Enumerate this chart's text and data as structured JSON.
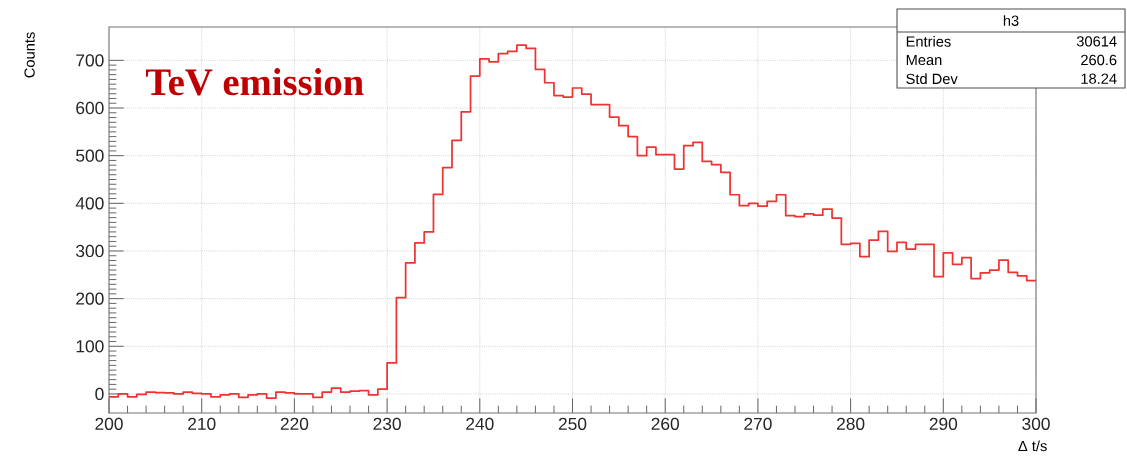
{
  "chart_data": {
    "type": "histogram",
    "xlabel": "Δ t/s",
    "ylabel": "Counts",
    "color": "#ee3333",
    "bins": [
      200,
      201,
      202,
      203,
      204,
      205,
      206,
      207,
      208,
      209,
      210,
      211,
      212,
      213,
      214,
      215,
      216,
      217,
      218,
      219,
      220,
      221,
      222,
      223,
      224,
      225,
      226,
      227,
      228,
      229,
      230,
      231,
      232,
      233,
      234,
      235,
      236,
      237,
      238,
      239,
      240,
      241,
      242,
      243,
      244,
      245,
      246,
      247,
      248,
      249,
      250,
      251,
      252,
      253,
      254,
      255,
      256,
      257,
      258,
      259,
      260,
      261,
      262,
      263,
      264,
      265,
      266,
      267,
      268,
      269,
      270,
      271,
      272,
      273,
      274,
      275,
      276,
      277,
      278,
      279,
      280,
      281,
      282,
      283,
      284,
      285,
      286,
      287,
      288,
      289,
      290,
      291,
      292,
      293,
      294,
      295,
      296,
      297,
      298,
      299,
      300
    ],
    "values": [
      -6,
      0,
      -6,
      -1,
      4,
      3,
      2,
      0,
      4,
      1,
      0,
      -6,
      -2,
      0,
      -7,
      -2,
      0,
      -9,
      4,
      2,
      0,
      0,
      -7,
      4,
      12,
      4,
      6,
      7,
      -2,
      10,
      65,
      202,
      275,
      317,
      340,
      419,
      475,
      532,
      592,
      667,
      703,
      697,
      714,
      719,
      732,
      725,
      681,
      653,
      626,
      623,
      642,
      629,
      607,
      607,
      581,
      563,
      540,
      500,
      518,
      502,
      502,
      472,
      521,
      528,
      488,
      481,
      465,
      418,
      395,
      400,
      394,
      404,
      418,
      374,
      372,
      378,
      375,
      388,
      369,
      314,
      316,
      288,
      323,
      341,
      299,
      318,
      304,
      314,
      314,
      246,
      296,
      272,
      286,
      242,
      254,
      260,
      281,
      255,
      248,
      238
    ],
    "xlim": [
      200,
      300
    ],
    "ylim": [
      -40,
      770
    ],
    "xticks": [
      200,
      210,
      220,
      230,
      240,
      250,
      260,
      270,
      280,
      290,
      300
    ],
    "yticks": [
      0,
      100,
      200,
      300,
      400,
      500,
      600,
      700
    ],
    "grid": true,
    "annotations": [
      "TeV emission",
      "h3",
      "Entries",
      "30614",
      "Mean",
      "260.6",
      "Std Dev",
      "18.24"
    ]
  }
}
